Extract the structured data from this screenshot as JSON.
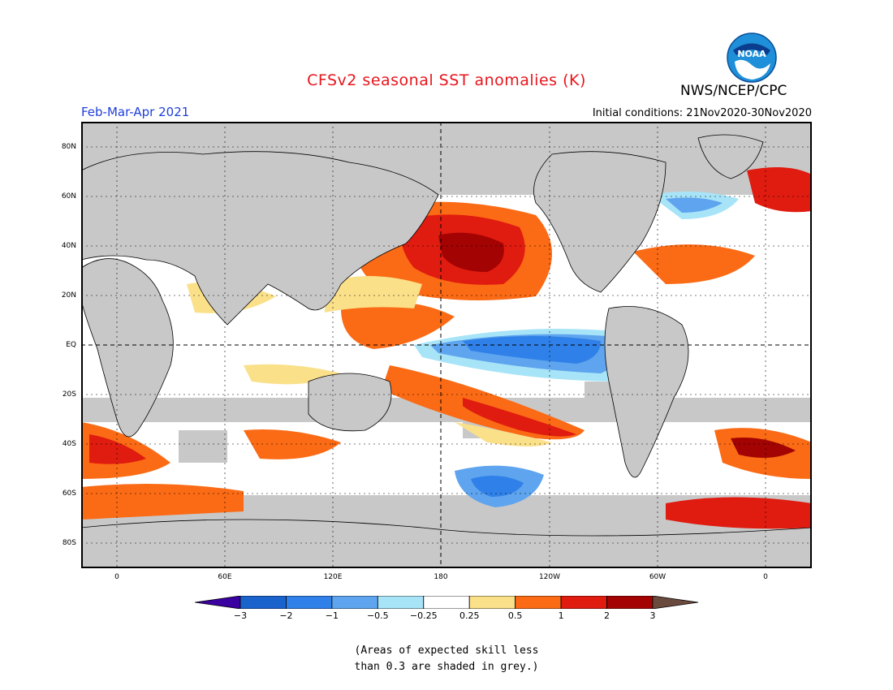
{
  "header": {
    "title": "CFSv2 seasonal SST anomalies (K)",
    "org": "NWS/NCEP/CPC",
    "logo_text": "NOAA",
    "period": "Feb-Mar-Apr 2021",
    "initial_conditions": "Initial conditions: 21Nov2020-30Nov2020"
  },
  "axes": {
    "lat_labels": [
      "80N",
      "60N",
      "40N",
      "20N",
      "EQ",
      "20S",
      "40S",
      "60S",
      "80S"
    ],
    "lon_labels": [
      "0",
      "60E",
      "120E",
      "180",
      "120W",
      "60W",
      "0"
    ]
  },
  "colorbar": {
    "labels": [
      "-3",
      "-2",
      "-1",
      "-0.5",
      "-0.25",
      "0.25",
      "0.5",
      "1",
      "2",
      "3"
    ],
    "colors": [
      "#3a00a0",
      "#1a62cc",
      "#2f80e8",
      "#5ea4ee",
      "#a8e4f8",
      "#ffffff",
      "#fbe08a",
      "#fb6a14",
      "#e01b10",
      "#a30303",
      "#6b4a3e"
    ]
  },
  "colors": {
    "land": "#c8c8c8",
    "skill_mask": "#c8c8c8"
  },
  "note": {
    "line1": "(Areas of expected skill less",
    "line2": "than 0.3 are shaded in grey.)"
  }
}
